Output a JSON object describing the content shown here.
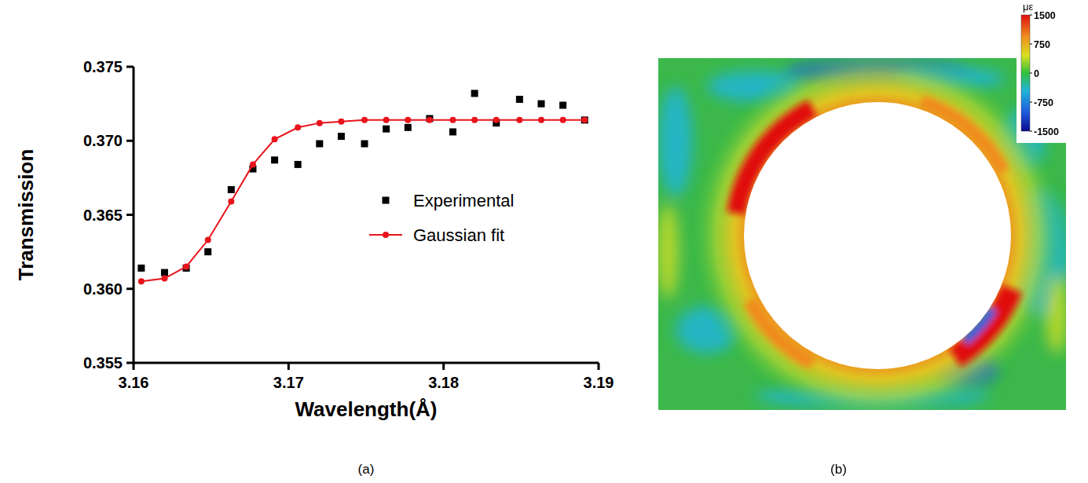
{
  "chart_data": [
    {
      "type": "scatter",
      "caption": "(a)",
      "x_label": "Wavelength(Å)",
      "y_label": "Transmission",
      "x": [
        3.1605,
        3.162,
        3.1634,
        3.1648,
        3.1663,
        3.1677,
        3.1691,
        3.1706,
        3.172,
        3.1734,
        3.1749,
        3.1763,
        3.1777,
        3.1791,
        3.1806,
        3.182,
        3.1834,
        3.1849,
        3.1863,
        3.1877,
        3.1891
      ],
      "series": [
        {
          "name": "Experimental",
          "type": "scatter",
          "marker": "square",
          "color": "#000000",
          "values": [
            0.3614,
            0.3611,
            0.3614,
            0.3625,
            0.3667,
            0.3681,
            0.3687,
            0.3684,
            0.3698,
            0.3703,
            0.3698,
            0.3708,
            0.3709,
            0.3715,
            0.3706,
            0.3732,
            0.3712,
            0.3728,
            0.3725,
            0.3724,
            0.3714
          ]
        },
        {
          "name": "Gaussian fit",
          "type": "line",
          "marker": "circle",
          "color": "#e8141c",
          "values": [
            0.3605,
            0.3607,
            0.3615,
            0.3633,
            0.3659,
            0.3684,
            0.3701,
            0.3709,
            0.3712,
            0.3713,
            0.3714,
            0.3714,
            0.3714,
            0.3714,
            0.3714,
            0.3714,
            0.3714,
            0.3714,
            0.3714,
            0.3714,
            0.3714
          ]
        }
      ],
      "xlim": [
        3.16,
        3.19
      ],
      "xticks": [
        3.16,
        3.17,
        3.18,
        3.19
      ],
      "ylim": [
        0.355,
        0.375
      ],
      "yticks": [
        0.355,
        {
          "value": 0.36,
          "label": "0.360"
        },
        0.365,
        {
          "value": 0.37,
          "label": "0.370"
        },
        0.375
      ],
      "legend": "right",
      "grid": false
    },
    {
      "type": "heatmap",
      "caption": "(b)",
      "colorbar": {
        "label": "με",
        "range": [
          -1500,
          1500
        ],
        "ticks": [
          1500,
          750,
          0,
          -750,
          -1500
        ]
      }
    }
  ]
}
